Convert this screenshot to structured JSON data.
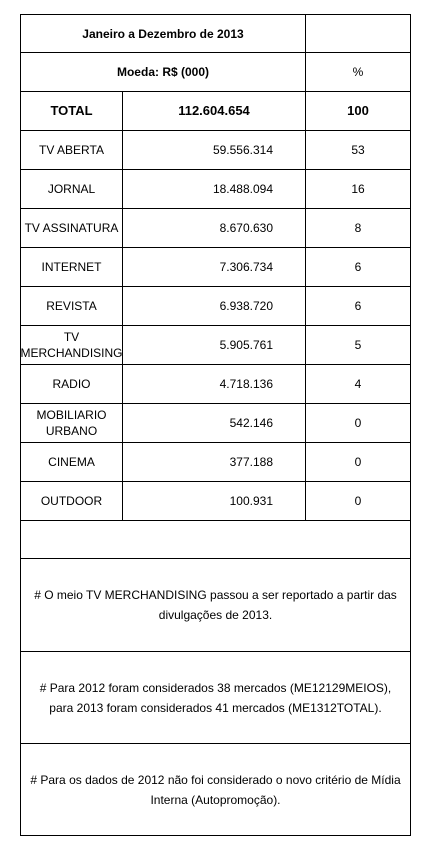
{
  "header": {
    "period": "Janeiro a Dezembro de 2013",
    "currency": "Moeda: R$ (000)",
    "percent_label": "%"
  },
  "total": {
    "label": "TOTAL",
    "value": "112.604.654",
    "percent": "100"
  },
  "rows": [
    {
      "label": "TV ABERTA",
      "value": "59.556.314",
      "percent": "53"
    },
    {
      "label": "JORNAL",
      "value": "18.488.094",
      "percent": "16"
    },
    {
      "label": "TV ASSINATURA",
      "value": "8.670.630",
      "percent": "8"
    },
    {
      "label": "INTERNET",
      "value": "7.306.734",
      "percent": "6"
    },
    {
      "label": "REVISTA",
      "value": "6.938.720",
      "percent": "6"
    },
    {
      "label": "TV MERCHANDISING",
      "value": "5.905.761",
      "percent": "5"
    },
    {
      "label": "RADIO",
      "value": "4.718.136",
      "percent": "4"
    },
    {
      "label": "MOBILIARIO URBANO",
      "value": "542.146",
      "percent": "0"
    },
    {
      "label": "CINEMA",
      "value": "377.188",
      "percent": "0"
    },
    {
      "label": "OUTDOOR",
      "value": "100.931",
      "percent": "0"
    }
  ],
  "notes": [
    "# O meio TV MERCHANDISING passou a ser reportado a partir das divulgações de 2013.",
    "# Para 2012 foram considerados 38 mercados (ME12129MEIOS), para 2013 foram considerados 41 mercados (ME1312TOTAL).",
    "# Para os dados de 2012 não foi considerado o novo critério de Mídia Interna (Autopromoção)."
  ]
}
